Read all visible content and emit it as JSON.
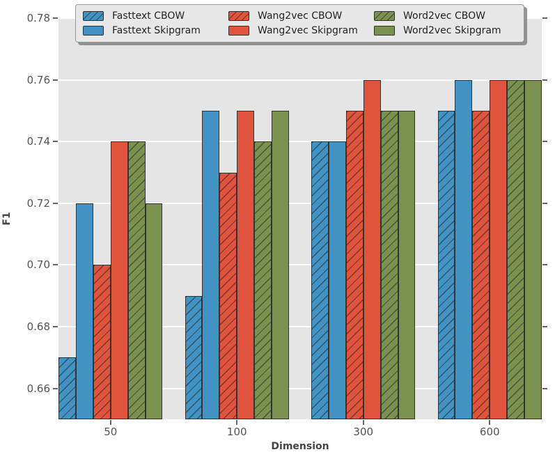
{
  "chart_data": {
    "type": "bar",
    "title": "",
    "xlabel": "Dimension",
    "ylabel": "F1",
    "categories": [
      "50",
      "100",
      "300",
      "600"
    ],
    "series": [
      {
        "name": "Fasttext CBOW",
        "color": "#4292c3",
        "hatch": true,
        "values": [
          0.67,
          0.69,
          0.74,
          0.75
        ]
      },
      {
        "name": "Fasttext Skipgram",
        "color": "#4292c3",
        "hatch": false,
        "values": [
          0.72,
          0.75,
          0.74,
          0.76
        ]
      },
      {
        "name": "Wang2vec CBOW",
        "color": "#e0543d",
        "hatch": true,
        "values": [
          0.7,
          0.73,
          0.75,
          0.75
        ]
      },
      {
        "name": "Wang2vec Skipgram",
        "color": "#e0543d",
        "hatch": false,
        "values": [
          0.74,
          0.75,
          0.76,
          0.76
        ]
      },
      {
        "name": "Word2vec CBOW",
        "color": "#7b9150",
        "hatch": true,
        "values": [
          0.74,
          0.74,
          0.75,
          0.76
        ]
      },
      {
        "name": "Word2vec Skipgram",
        "color": "#7b9150",
        "hatch": false,
        "values": [
          0.72,
          0.75,
          0.75,
          0.76
        ]
      }
    ],
    "ylim": [
      0.65,
      0.78
    ],
    "yticks": [
      0.66,
      0.68,
      0.7,
      0.72,
      0.74,
      0.76,
      0.78
    ],
    "grid": true,
    "legend_position": "top, 2 rows x 3 columns, overlapping plot"
  },
  "colors": {
    "plot_background": "#e5e5e5",
    "figure_background": "#ffffff",
    "gridline": "#ffffff",
    "bar_edge": "#333333",
    "tick_text": "#555555",
    "axis_title_text": "#444444",
    "legend_background": "#e8e8e8",
    "legend_border": "#969696",
    "legend_shadow": "#828282",
    "legend_text": "#222222"
  }
}
